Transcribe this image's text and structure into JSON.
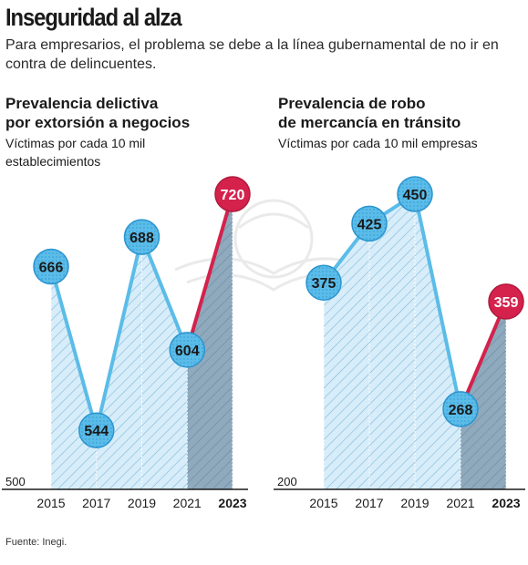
{
  "header": {
    "title": "Inseguridad al alza",
    "subtitle": "Para empresarios, el problema se debe a la línea gubernamental de no ir en contra de delincuentes."
  },
  "source": "Fuente: Inegi.",
  "colors": {
    "marker": "#5bbce8",
    "marker_stroke": "#2a94cf",
    "area": "#d7edf9",
    "highlight": "#d4224c",
    "highlight_area": "#8fa9bd",
    "axis": "#1a1a1a"
  },
  "chart_data": [
    {
      "type": "area",
      "title": "Prevalencia delictiva por extorsión a negocios",
      "title_lines": [
        "Prevalencia delictiva",
        "por extorsión a negocios"
      ],
      "subtitle_lines": [
        "Víctimas por cada 10 mil",
        "establecimientos"
      ],
      "categories": [
        "2015",
        "2017",
        "2019",
        "2021",
        "2023"
      ],
      "values": [
        666,
        544,
        688,
        604,
        720
      ],
      "ylim": [
        500,
        720
      ],
      "baseline_label": "500",
      "highlight_last": true
    },
    {
      "type": "area",
      "title": "Prevalencia de robo de mercancía en tránsito",
      "title_lines": [
        "Prevalencia de robo",
        "de mercancía en tránsito"
      ],
      "subtitle_lines": [
        "Víctimas por cada 10 mil empresas"
      ],
      "categories": [
        "2015",
        "2017",
        "2019",
        "2021",
        "2023"
      ],
      "values": [
        375,
        425,
        450,
        268,
        359
      ],
      "ylim": [
        200,
        450
      ],
      "baseline_label": "200",
      "highlight_last": true
    }
  ]
}
